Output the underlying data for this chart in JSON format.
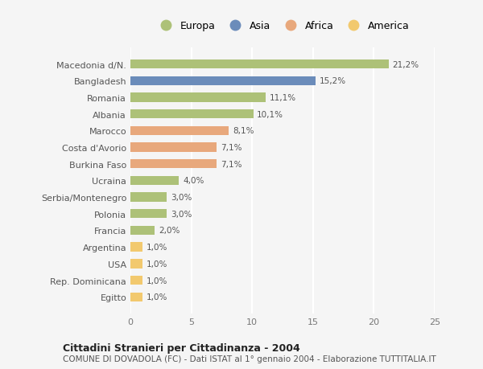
{
  "categories": [
    "Macedonia d/N.",
    "Bangladesh",
    "Romania",
    "Albania",
    "Marocco",
    "Costa d'Avorio",
    "Burkina Faso",
    "Ucraina",
    "Serbia/Montenegro",
    "Polonia",
    "Francia",
    "Argentina",
    "USA",
    "Rep. Dominicana",
    "Egitto"
  ],
  "values": [
    21.2,
    15.2,
    11.1,
    10.1,
    8.1,
    7.1,
    7.1,
    4.0,
    3.0,
    3.0,
    2.0,
    1.0,
    1.0,
    1.0,
    1.0
  ],
  "labels": [
    "21,2%",
    "15,2%",
    "11,1%",
    "10,1%",
    "8,1%",
    "7,1%",
    "7,1%",
    "4,0%",
    "3,0%",
    "3,0%",
    "2,0%",
    "1,0%",
    "1,0%",
    "1,0%",
    "1,0%"
  ],
  "colors": [
    "#adc178",
    "#6b8cba",
    "#adc178",
    "#adc178",
    "#e8a87c",
    "#e8a87c",
    "#e8a87c",
    "#adc178",
    "#adc178",
    "#adc178",
    "#adc178",
    "#f2c96e",
    "#f2c96e",
    "#f2c96e",
    "#f2c96e"
  ],
  "legend_labels": [
    "Europa",
    "Asia",
    "Africa",
    "America"
  ],
  "legend_colors": [
    "#adc178",
    "#6b8cba",
    "#e8a87c",
    "#f2c96e"
  ],
  "xlim": [
    0,
    25
  ],
  "xticks": [
    0,
    5,
    10,
    15,
    20,
    25
  ],
  "title": "Cittadini Stranieri per Cittadinanza - 2004",
  "subtitle": "COMUNE DI DOVADOLA (FC) - Dati ISTAT al 1° gennaio 2004 - Elaborazione TUTTITALIA.IT",
  "bg_color": "#f5f5f5",
  "grid_color": "#ffffff",
  "bar_height": 0.55
}
